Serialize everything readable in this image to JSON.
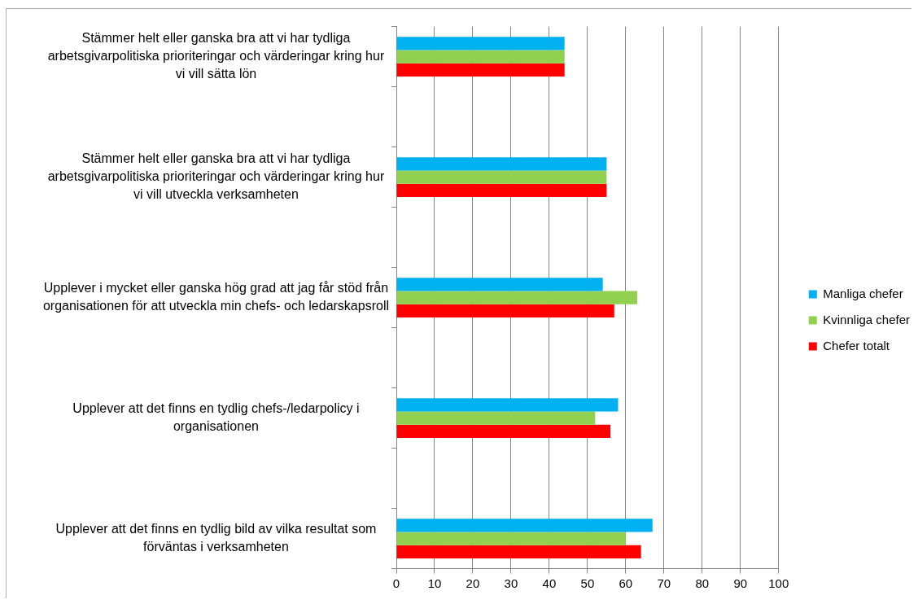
{
  "chart_data": {
    "type": "bar",
    "orientation": "horizontal",
    "categories": [
      "Stämmer helt eller ganska bra att vi har tydliga\narbetsgivarpolitiska prioriteringar och värderingar kring hur\nvi vill sätta lön",
      null,
      "Stämmer helt eller ganska bra att vi har tydliga\narbetsgivarpolitiska prioriteringar och värderingar kring hur\nvi vill utveckla verksamheten",
      null,
      "Upplever i mycket eller ganska hög grad att jag får stöd från\norganisationen för att utveckla min chefs- och ledarskapsroll",
      null,
      "Upplever att det finns en tydlig chefs-/ledarpolicy i\norganisationen",
      null,
      "Upplever att det finns en tydlig bild av vilka resultat som\nförväntas i verksamheten"
    ],
    "series": [
      {
        "name": "Manliga chefer",
        "color": "#00b0f0",
        "values": [
          44,
          null,
          55,
          null,
          54,
          null,
          58,
          null,
          67
        ]
      },
      {
        "name": "Kvinnliga chefer",
        "color": "#92d050",
        "values": [
          44,
          null,
          55,
          null,
          63,
          null,
          52,
          null,
          60
        ]
      },
      {
        "name": "Chefer totalt",
        "color": "#ff0000",
        "values": [
          44,
          null,
          55,
          null,
          57,
          null,
          56,
          null,
          64
        ]
      }
    ],
    "xlim": [
      0,
      100
    ],
    "xticks": [
      0,
      10,
      20,
      30,
      40,
      50,
      60,
      70,
      80,
      90,
      100
    ],
    "grid": "x",
    "legend": "right"
  }
}
